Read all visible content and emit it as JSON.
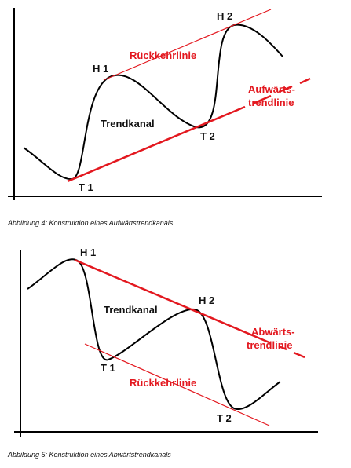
{
  "figure1": {
    "caption": "Abbildung 4: Konstruktion eines Aufwärtstrendkanals",
    "labels": {
      "h1": "H 1",
      "h2": "H 2",
      "t1": "T 1",
      "t2": "T 2",
      "channel": "Trendkanal",
      "return_line": "Rückkehrlinie",
      "trendline_1": "Aufwärts-",
      "trendline_2": "trendlinie"
    }
  },
  "figure2": {
    "caption": "Abbildung 5: Konstruktion eines Abwärtstrendkanals",
    "labels": {
      "h1": "H 1",
      "h2": "H 2",
      "t1": "T 1",
      "t2": "T 2",
      "channel": "Trendkanal",
      "return_line": "Rückkehrlinie",
      "trendline_1": "Abwärts-",
      "trendline_2": "trendlinie"
    }
  },
  "colors": {
    "price_curve": "#000000",
    "trend_lines": "#e3181f",
    "axes": "#000000"
  }
}
